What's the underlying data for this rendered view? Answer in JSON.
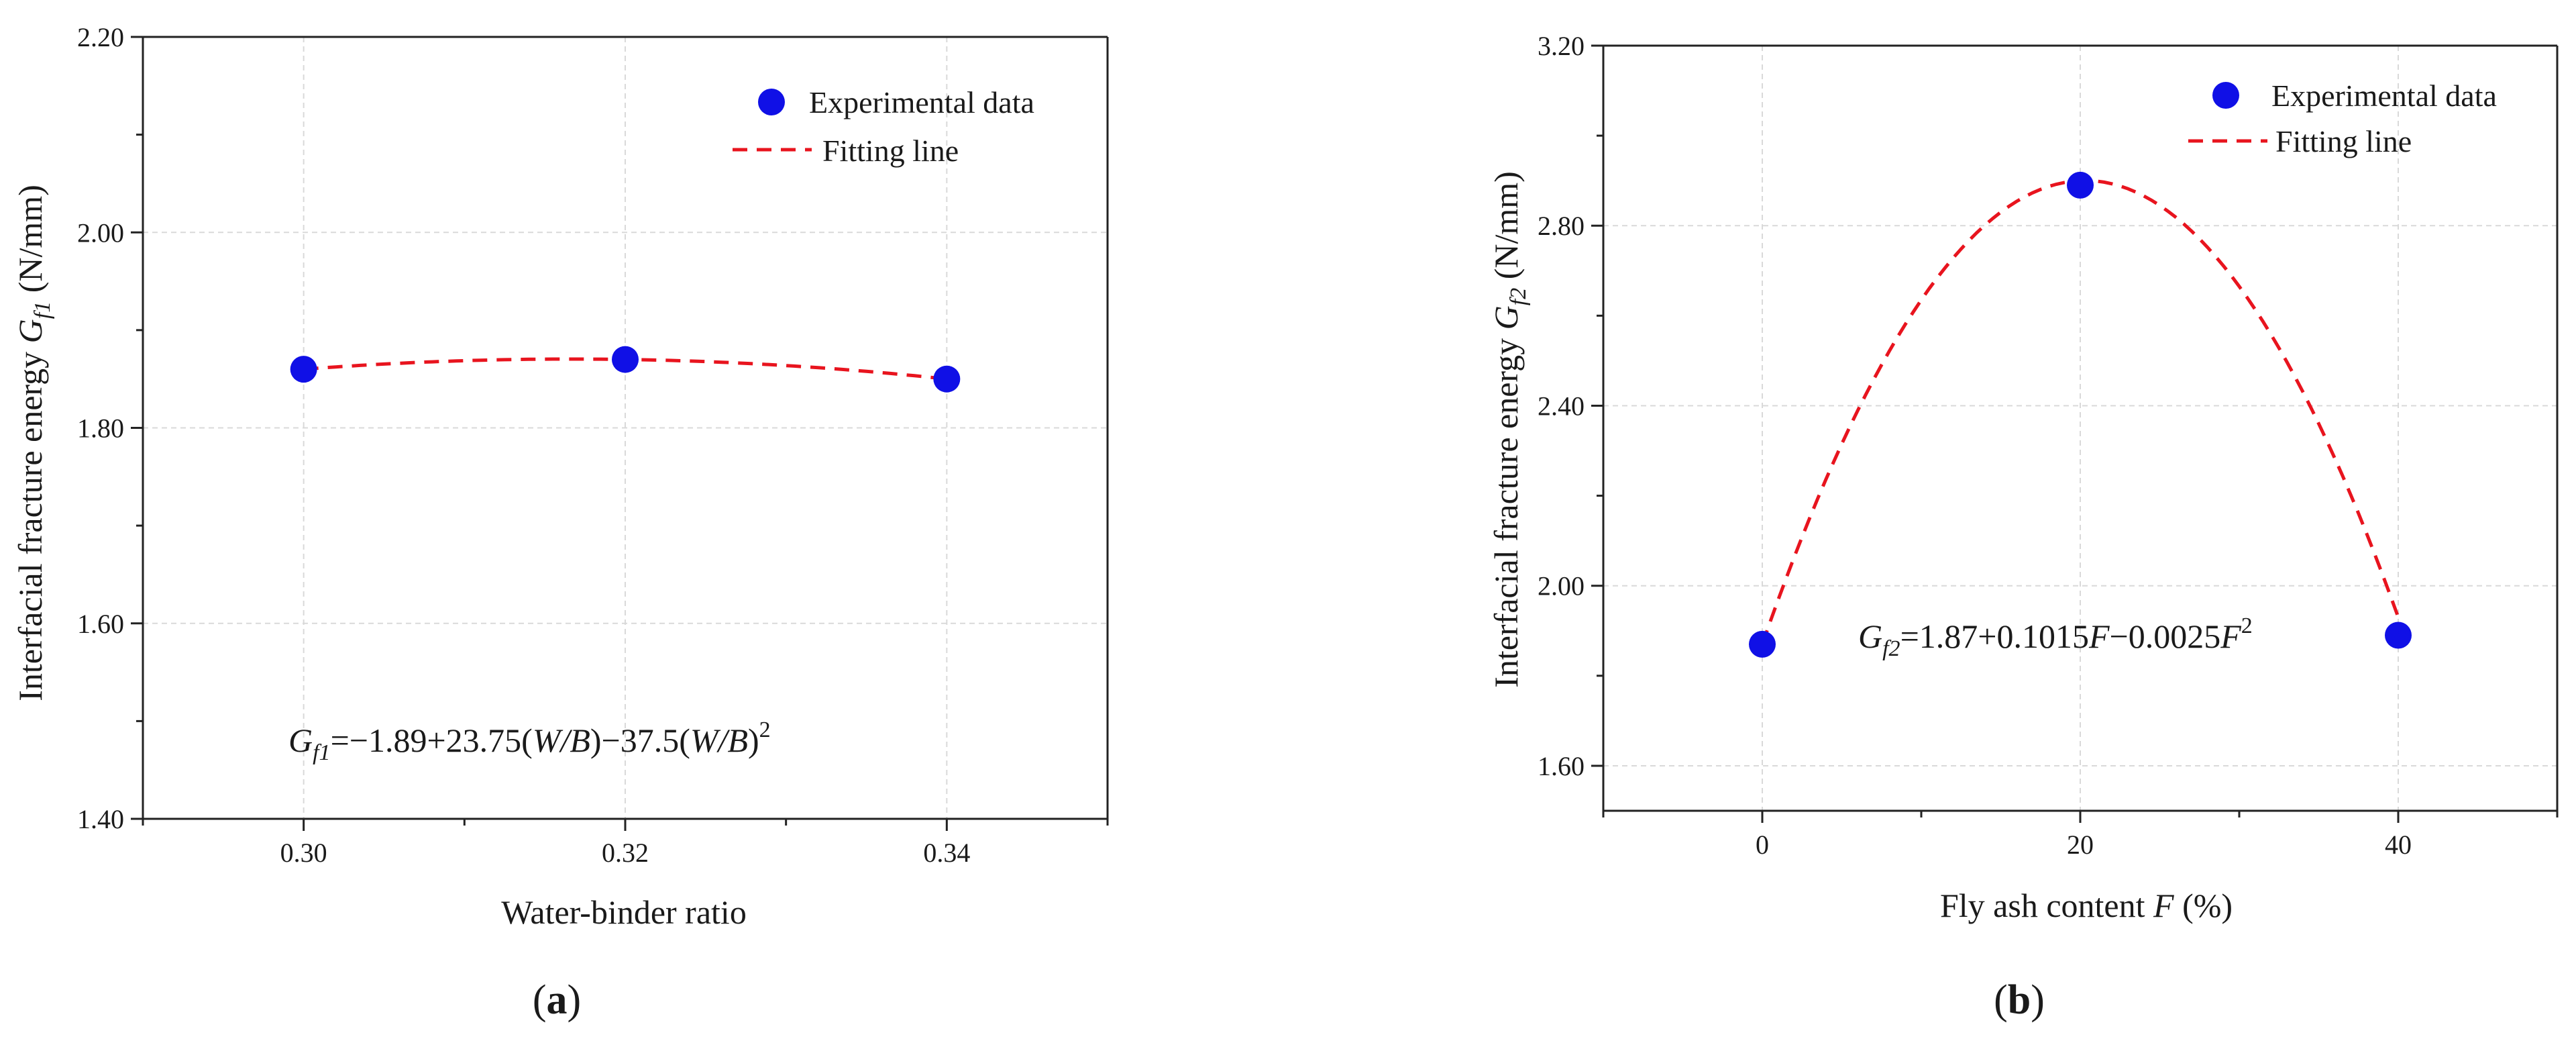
{
  "chart_data": [
    {
      "type": "scatter",
      "panel_label": "a",
      "title": "",
      "xlabel": "Water-binder ratio",
      "ylabel": {
        "prefix": "Interfacial fracture energy ",
        "symbol": "G",
        "sub": "f1",
        "suffix": " (N/mm)"
      },
      "xlim": [
        0.29,
        0.35
      ],
      "ylim": [
        1.4,
        2.2
      ],
      "xticks": [
        0.3,
        0.32,
        0.34
      ],
      "xtick_labels": [
        "0.30",
        "0.32",
        "0.34"
      ],
      "yticks": [
        1.4,
        1.6,
        1.8,
        2.0,
        2.2
      ],
      "ytick_labels": [
        "1.40",
        "1.60",
        "1.80",
        "2.00",
        "2.20"
      ],
      "grid": true,
      "legend_position": "top-right",
      "series": [
        {
          "name": "Experimental data",
          "kind": "scatter",
          "color": "#1010e6",
          "x": [
            0.3,
            0.32,
            0.34
          ],
          "y": [
            1.86,
            1.87,
            1.85
          ]
        },
        {
          "name": "Fitting line",
          "kind": "line",
          "style": "dashed",
          "color": "#e8141e",
          "fit": {
            "c0": -1.89,
            "c1": 23.75,
            "c2": -37.5
          },
          "x_range": [
            0.3,
            0.34
          ]
        }
      ],
      "equation": {
        "symbol": "G",
        "sub": "f1",
        "body": "=−1.89+23.75(",
        "var": "W/B",
        "mid": ")−37.5(",
        "var2": "W/B",
        "end": ")",
        "sup": "2"
      }
    },
    {
      "type": "scatter",
      "panel_label": "b",
      "title": "",
      "xlabel": {
        "text": "Fly ash content ",
        "var": "F",
        "unit": " (%)"
      },
      "ylabel": {
        "prefix": "Interfacial fracture energy ",
        "symbol": "G",
        "sub": "f2",
        "suffix": " (N/mm)"
      },
      "xlim": [
        -10,
        50
      ],
      "ylim": [
        1.5,
        3.2
      ],
      "xticks": [
        0,
        20,
        40
      ],
      "xtick_labels": [
        "0",
        "20",
        "40"
      ],
      "yticks": [
        1.6,
        2.0,
        2.4,
        2.8,
        3.2
      ],
      "ytick_labels": [
        "1.60",
        "2.00",
        "2.40",
        "2.80",
        "3.20"
      ],
      "grid": true,
      "legend_position": "top-right",
      "series": [
        {
          "name": "Experimental data",
          "kind": "scatter",
          "color": "#1010e6",
          "x": [
            0,
            20,
            40
          ],
          "y": [
            1.87,
            2.89,
            1.89
          ]
        },
        {
          "name": "Fitting line",
          "kind": "line",
          "style": "dashed",
          "color": "#e8141e",
          "fit": {
            "c0": 1.87,
            "c1": 0.1015,
            "c2": -0.0025
          },
          "x_range": [
            0,
            40
          ]
        }
      ],
      "equation": {
        "symbol": "G",
        "sub": "f2",
        "body": "=1.87+0.1015",
        "var": "F",
        "mid": "−0.0025",
        "var2": "F",
        "end": "",
        "sup": "2"
      }
    }
  ]
}
